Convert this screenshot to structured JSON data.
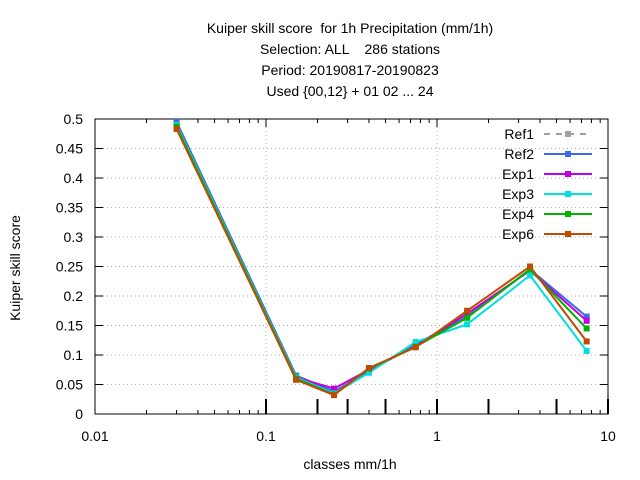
{
  "title_lines": [
    "Kuiper skill score  for 1h Precipitation (mm/1h)",
    "Selection: ALL    286 stations",
    "Period: 20190817-20190823",
    "Used {00,12} + 01 02 ... 24"
  ],
  "chart_data": {
    "type": "line",
    "xlabel": "classes mm/1h",
    "ylabel": "Kuiper skill score",
    "x_scale": "log",
    "xlim": [
      0.01,
      10
    ],
    "ylim": [
      0,
      0.5
    ],
    "x_ticks": [
      {
        "value": 0.01,
        "label": "0.01"
      },
      {
        "value": 0.1,
        "label": "0.1"
      },
      {
        "value": 1,
        "label": "1"
      },
      {
        "value": 10,
        "label": "10"
      }
    ],
    "y_ticks": [
      {
        "value": 0,
        "label": "0"
      },
      {
        "value": 0.05,
        "label": "0.05"
      },
      {
        "value": 0.1,
        "label": "0.1"
      },
      {
        "value": 0.15,
        "label": "0.15"
      },
      {
        "value": 0.2,
        "label": "0.2"
      },
      {
        "value": 0.25,
        "label": "0.25"
      },
      {
        "value": 0.3,
        "label": "0.3"
      },
      {
        "value": 0.35,
        "label": "0.35"
      },
      {
        "value": 0.4,
        "label": "0.4"
      },
      {
        "value": 0.45,
        "label": "0.45"
      },
      {
        "value": 0.5,
        "label": "0.5"
      }
    ],
    "class_thresholds": [
      0.1,
      0.2,
      0.3,
      0.5,
      1,
      2,
      5,
      10
    ],
    "grid": true,
    "legend_position": "top-right",
    "x": [
      0.03,
      0.15,
      0.25,
      0.4,
      0.75,
      1.5,
      3.5,
      7.5
    ],
    "series": [
      {
        "name": "Ref1",
        "color": "#a0a0a0",
        "dashed": true,
        "values": [
          0.495,
          0.065,
          0.038,
          0.072,
          0.118,
          0.165,
          0.245,
          0.165
        ]
      },
      {
        "name": "Ref2",
        "color": "#4169e1",
        "dashed": false,
        "values": [
          0.495,
          0.065,
          0.038,
          0.072,
          0.118,
          0.165,
          0.245,
          0.165
        ]
      },
      {
        "name": "Exp1",
        "color": "#c000e0",
        "dashed": false,
        "values": [
          0.49,
          0.062,
          0.043,
          0.075,
          0.115,
          0.17,
          0.243,
          0.158
        ]
      },
      {
        "name": "Exp3",
        "color": "#00dede",
        "dashed": false,
        "values": [
          0.49,
          0.062,
          0.035,
          0.07,
          0.122,
          0.152,
          0.235,
          0.107
        ]
      },
      {
        "name": "Exp4",
        "color": "#00b400",
        "dashed": false,
        "values": [
          0.487,
          0.06,
          0.033,
          0.077,
          0.114,
          0.163,
          0.245,
          0.145
        ]
      },
      {
        "name": "Exp6",
        "color": "#c04a00",
        "dashed": false,
        "values": [
          0.483,
          0.058,
          0.032,
          0.078,
          0.113,
          0.175,
          0.25,
          0.123
        ]
      }
    ]
  }
}
